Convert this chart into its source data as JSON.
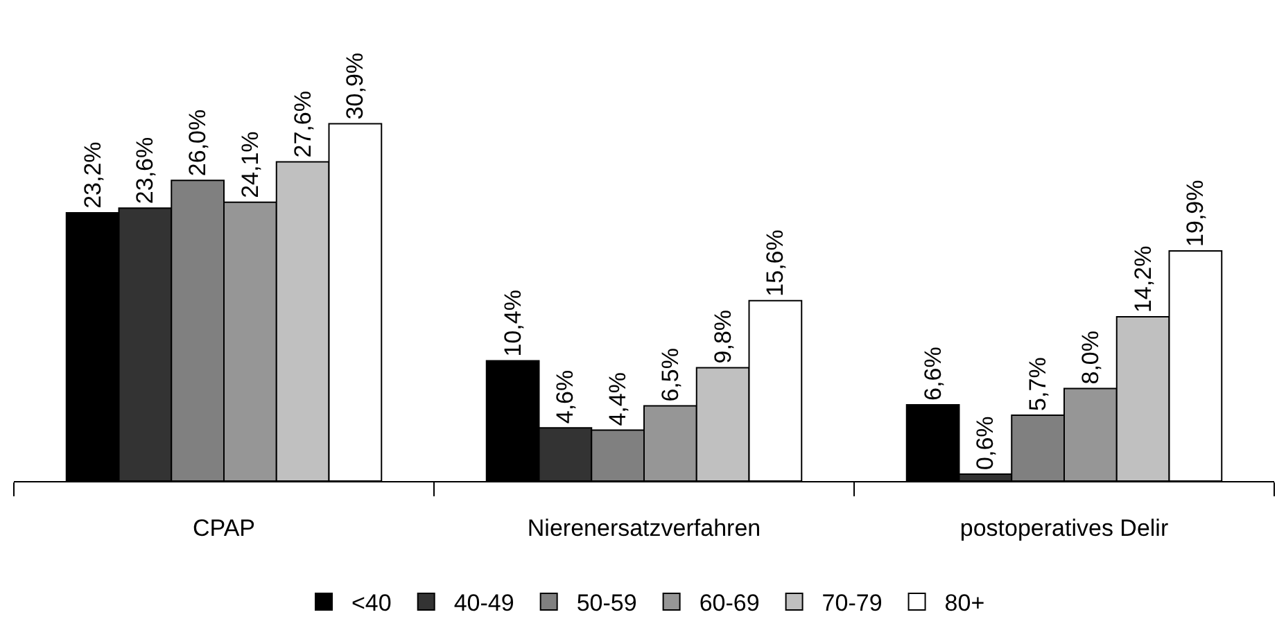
{
  "chart_data": {
    "type": "bar",
    "categories": [
      "CPAP",
      "Nierenersatzverfahren",
      "postoperatives Delir"
    ],
    "series": [
      {
        "name": "<40",
        "color": "#000000",
        "values": [
          23.2,
          10.4,
          6.6
        ],
        "value_labels": [
          "23,2%",
          "10,4%",
          "6,6%"
        ]
      },
      {
        "name": "40-49",
        "color": "#333333",
        "values": [
          23.6,
          4.6,
          0.6
        ],
        "value_labels": [
          "23,6%",
          "4,6%",
          "0,6%"
        ]
      },
      {
        "name": "50-59",
        "color": "#808080",
        "values": [
          26.0,
          4.4,
          5.7
        ],
        "value_labels": [
          "26,0%",
          "4,4%",
          "5,7%"
        ]
      },
      {
        "name": "60-69",
        "color": "#969696",
        "values": [
          24.1,
          6.5,
          8.0
        ],
        "value_labels": [
          "24,1%",
          "6,5%",
          "8,0%"
        ]
      },
      {
        "name": "70-79",
        "color": "#c0c0c0",
        "values": [
          27.6,
          9.8,
          14.2
        ],
        "value_labels": [
          "27,6%",
          "9,8%",
          "14,2%"
        ]
      },
      {
        "name": "80+",
        "color": "#ffffff",
        "values": [
          30.9,
          15.6,
          19.9
        ],
        "value_labels": [
          "30,9%",
          "15,6%",
          "19,9%"
        ]
      }
    ],
    "legend": "bottom"
  }
}
